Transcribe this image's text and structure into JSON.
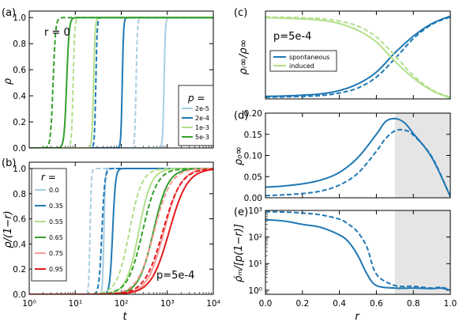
{
  "figure": {
    "panel_labels": [
      "(a)",
      "(b)",
      "(c)",
      "(d)",
      "(e)"
    ]
  },
  "colors": {
    "light_blue": "#a6cee3",
    "dark_blue": "#1f78b4",
    "light_green": "#b2df8a",
    "dark_green": "#33a02c",
    "light_red": "#fb9a99",
    "dark_red": "#e31a1c",
    "shade": "#e5e5e5"
  },
  "chart_data": [
    {
      "id": "a",
      "type": "line",
      "xscale": "log",
      "xlim": [
        1,
        10000
      ],
      "ylim": [
        0,
        1.05
      ],
      "yticks": [
        "0.0",
        "0.2",
        "0.4",
        "0.6",
        "0.8",
        "1.0"
      ],
      "ylabel": "ρ",
      "annotation": "r = 0",
      "legend_title": "p =",
      "legend_location": "lower right",
      "series": [
        {
          "name": "2e-5",
          "color": "light_blue",
          "solid_mid": 850,
          "dashed_mid": 210,
          "steep": 30
        },
        {
          "name": "2e-4",
          "color": "dark_blue",
          "solid_mid": 105,
          "dashed_mid": 28,
          "steep": 30
        },
        {
          "name": "1e-3",
          "color": "light_green",
          "solid_mid": 25,
          "dashed_mid": 9,
          "steep": 25
        },
        {
          "name": "5e-3",
          "color": "dark_green",
          "solid_mid": 6.5,
          "dashed_mid": 3.3,
          "steep": 16
        }
      ]
    },
    {
      "id": "b",
      "type": "line",
      "xscale": "log",
      "xlim": [
        1,
        10000
      ],
      "ylim": [
        0,
        1.05
      ],
      "yticks": [
        "0.0",
        "0.2",
        "0.4",
        "0.6",
        "0.8",
        "1.0"
      ],
      "xticks": [
        "10⁰",
        "10¹",
        "10²",
        "10³",
        "10⁴"
      ],
      "xlabel": "t",
      "ylabel": "ρ/(1−r)",
      "annotation": "p=5e-4",
      "legend_title": "r =",
      "legend_location": "upper left",
      "series": [
        {
          "name": "0.0",
          "color": "light_blue",
          "solid_mid": 42,
          "dashed_mid": 21,
          "steep": 30
        },
        {
          "name": "0.35",
          "color": "dark_blue",
          "solid_mid": 65,
          "dashed_mid": 38,
          "steep": 14
        },
        {
          "name": "0.55",
          "color": "light_green",
          "solid_mid": 240,
          "dashed_mid": 150,
          "steep": 3.2
        },
        {
          "name": "0.65",
          "color": "dark_green",
          "solid_mid": 500,
          "dashed_mid": 290,
          "steep": 2.7
        },
        {
          "name": "0.75",
          "color": "light_red",
          "solid_mid": 850,
          "dashed_mid": 520,
          "steep": 2.4
        },
        {
          "name": "0.95",
          "color": "dark_red",
          "solid_mid": 1100,
          "dashed_mid": 800,
          "steep": 2.2
        }
      ]
    },
    {
      "id": "c",
      "type": "line",
      "xlim": [
        0,
        1
      ],
      "ylim": [
        0,
        1.05
      ],
      "ylabel": "ρᵢ∞/ρ∞",
      "annotation": "p=5e-4",
      "legend_location": "center left",
      "x": [
        0.0,
        0.1,
        0.2,
        0.3,
        0.4,
        0.5,
        0.6,
        0.7,
        0.8,
        0.9,
        1.0
      ],
      "series": [
        {
          "name": "spontaneous",
          "color": "dark_blue",
          "style": "solid",
          "values": [
            0.03,
            0.035,
            0.045,
            0.06,
            0.1,
            0.18,
            0.32,
            0.55,
            0.75,
            0.9,
            0.99
          ]
        },
        {
          "name": "",
          "color": "dark_blue",
          "style": "dashed",
          "values": [
            0.02,
            0.024,
            0.03,
            0.04,
            0.07,
            0.13,
            0.26,
            0.48,
            0.72,
            0.89,
            0.98
          ]
        },
        {
          "name": "induced",
          "color": "light_green",
          "style": "solid",
          "values": [
            0.97,
            0.965,
            0.955,
            0.94,
            0.9,
            0.82,
            0.68,
            0.45,
            0.25,
            0.1,
            0.01
          ]
        },
        {
          "name": "",
          "color": "light_green",
          "style": "dashed",
          "values": [
            0.98,
            0.976,
            0.97,
            0.96,
            0.93,
            0.87,
            0.74,
            0.52,
            0.28,
            0.11,
            0.02
          ]
        }
      ]
    },
    {
      "id": "d",
      "type": "line",
      "xlim": [
        0,
        1
      ],
      "ylim": [
        0,
        0.2
      ],
      "yticks": [
        "0.00",
        "0.05",
        "0.10",
        "0.15",
        "0.20"
      ],
      "ylabel": "ρ₀∞",
      "shaded_region": [
        0.7,
        1.0
      ],
      "x": [
        0.0,
        0.1,
        0.2,
        0.3,
        0.4,
        0.5,
        0.6,
        0.65,
        0.7,
        0.75,
        0.8,
        0.9,
        1.0
      ],
      "series": [
        {
          "name": "",
          "color": "dark_blue",
          "style": "solid",
          "values": [
            0.025,
            0.028,
            0.033,
            0.042,
            0.06,
            0.095,
            0.15,
            0.18,
            0.187,
            0.178,
            0.152,
            0.095,
            0.003
          ]
        },
        {
          "name": "",
          "color": "dark_blue",
          "style": "dashed",
          "values": [
            0.005,
            0.007,
            0.01,
            0.016,
            0.03,
            0.058,
            0.11,
            0.14,
            0.158,
            0.16,
            0.148,
            0.097,
            0.003
          ]
        }
      ]
    },
    {
      "id": "e",
      "type": "line",
      "yscale": "log",
      "xlim": [
        0,
        1
      ],
      "ylim": [
        0.7,
        1000
      ],
      "xticks": [
        "0.0",
        "0.2",
        "0.4",
        "0.6",
        "0.8",
        "1.0"
      ],
      "yticks": [
        "10⁰",
        "10¹",
        "10²",
        "10³"
      ],
      "xlabel": "r",
      "ylabel": "ρ̇ₘ/[p(1−r)]",
      "shaded_region": [
        0.7,
        1.0
      ],
      "x": [
        0.0,
        0.1,
        0.2,
        0.3,
        0.4,
        0.45,
        0.5,
        0.55,
        0.6,
        0.7,
        0.8,
        0.9,
        0.95,
        1.0
      ],
      "series": [
        {
          "name": "",
          "color": "dark_blue",
          "style": "solid",
          "values": [
            450,
            400,
            300,
            230,
            120,
            65,
            20,
            4,
            1.5,
            1.2,
            1.2,
            1.15,
            1.2,
            1.0
          ]
        },
        {
          "name": "",
          "color": "dark_blue",
          "style": "dashed",
          "values": [
            900,
            870,
            800,
            680,
            470,
            300,
            150,
            40,
            4,
            1.5,
            1.4,
            1.2,
            1.3,
            1.0
          ]
        }
      ]
    }
  ]
}
